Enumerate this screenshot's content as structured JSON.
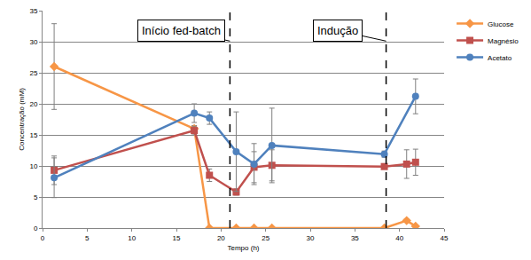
{
  "chart_data": {
    "type": "line",
    "x_label": "Tempo (h)",
    "y_label": "Concentração (mM)",
    "xlim": [
      0,
      45
    ],
    "xticks": [
      0,
      5,
      10,
      15,
      20,
      25,
      30,
      35,
      40,
      45
    ],
    "ylim": [
      0,
      35
    ],
    "yticks": [
      0,
      5,
      10,
      15,
      20,
      25,
      30,
      35
    ],
    "grid": true,
    "legend": "right",
    "series": [
      {
        "name": "Glucose",
        "color": "#f79646",
        "marker": "diamond",
        "x": [
          1.3,
          17,
          18.7,
          21.7,
          23.7,
          25.7,
          38.3,
          40.8,
          41.8
        ],
        "values": [
          26,
          16,
          0,
          0,
          0,
          0,
          0,
          1.2,
          0.3
        ],
        "errors": [
          6.9,
          0.5,
          0,
          0,
          0,
          0,
          0,
          0.2,
          0.1
        ]
      },
      {
        "name": "Magnésio",
        "color": "#c0504d",
        "marker": "square",
        "x": [
          1.3,
          17,
          18.7,
          21.7,
          23.7,
          25.7,
          38.3,
          40.8,
          41.8
        ],
        "values": [
          9.3,
          15.7,
          8.5,
          5.8,
          9.8,
          10.1,
          9.9,
          10.3,
          10.6
        ],
        "errors": [
          2.3,
          0.7,
          1,
          0.5,
          2.5,
          2.5,
          0.3,
          2.3,
          2.1
        ]
      },
      {
        "name": "Acetato",
        "color": "#4f81bd",
        "marker": "circle",
        "x": [
          1.3,
          17,
          18.7,
          21.7,
          23.7,
          25.7,
          38.3,
          41.8
        ],
        "values": [
          8.1,
          18.5,
          17.7,
          12.3,
          10.3,
          13.3,
          11.9,
          21.2
        ],
        "errors": [
          3.2,
          1.5,
          1,
          6.4,
          3.3,
          6,
          0.5,
          2.8
        ]
      }
    ],
    "vlines": [
      {
        "x": 21,
        "label": "Início fed-batch"
      },
      {
        "x": 38.5,
        "label": "Indução"
      }
    ]
  }
}
